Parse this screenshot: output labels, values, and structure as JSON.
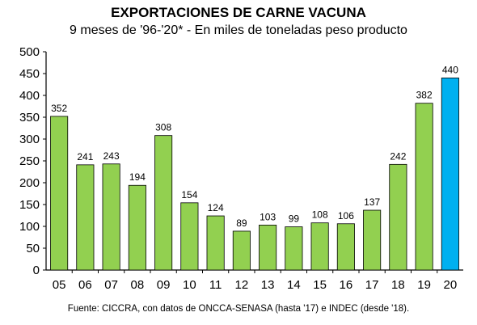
{
  "chart_data": {
    "type": "bar",
    "title": "EXPORTACIONES DE CARNE VACUNA",
    "subtitle": "9 meses de '96-'20* - En miles de toneladas peso producto",
    "source": "Fuente: CICCRA, con datos de ONCCA-SENASA (hasta '17) e INDEC (desde '18).",
    "categories": [
      "05",
      "06",
      "07",
      "08",
      "09",
      "10",
      "11",
      "12",
      "13",
      "14",
      "15",
      "16",
      "17",
      "18",
      "19",
      "20"
    ],
    "values": [
      352,
      241,
      243,
      194,
      308,
      154,
      124,
      89,
      103,
      99,
      108,
      106,
      137,
      242,
      382,
      440
    ],
    "data_labels": [
      "352",
      "241",
      "243",
      "194",
      "308",
      "154",
      "124",
      "89",
      "103",
      "99",
      "108",
      "106",
      "137",
      "242",
      "382",
      "440"
    ],
    "y_ticks": [
      "0",
      "50",
      "100",
      "150",
      "200",
      "250",
      "300",
      "350",
      "400",
      "450",
      "500"
    ],
    "ylim": [
      0,
      500
    ],
    "xlabel": "",
    "ylabel": "",
    "grid": false,
    "colors": {
      "default_bar": "#92d050",
      "highlight_bar": "#00b0f0",
      "bar_stroke": "#000000"
    },
    "highlight_index": 15
  }
}
